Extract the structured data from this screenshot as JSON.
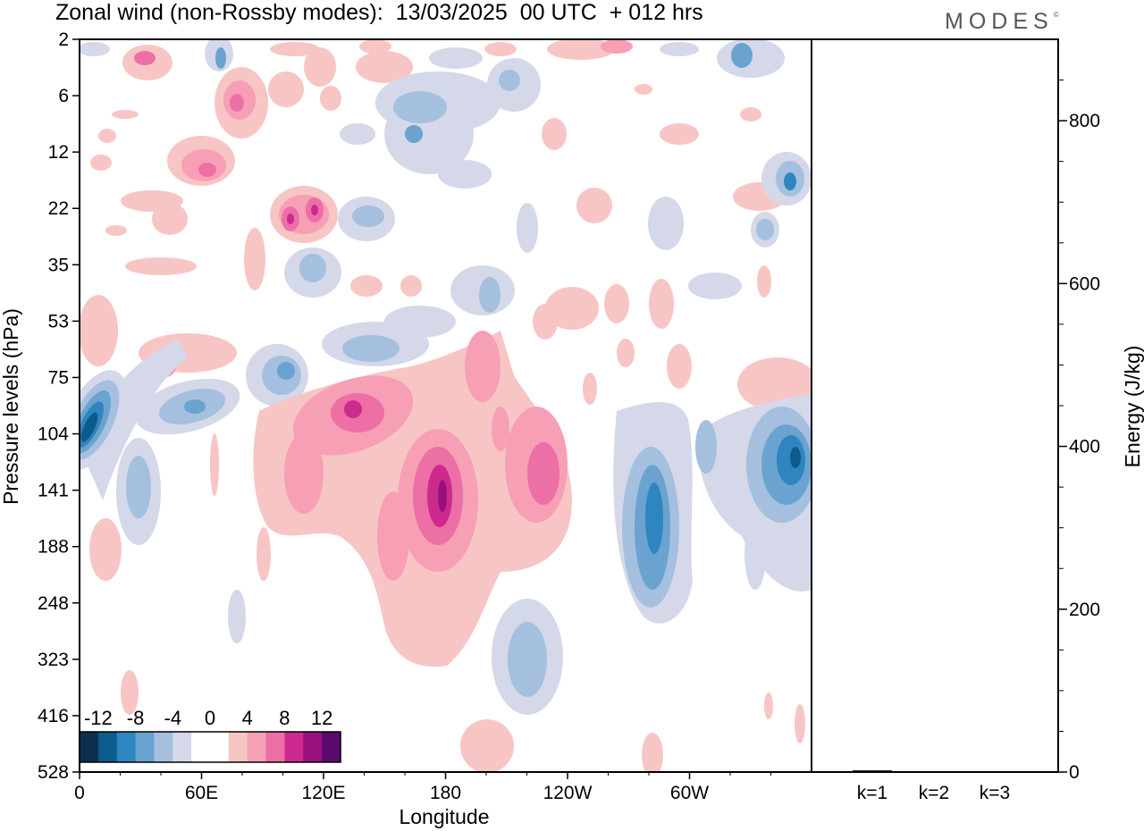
{
  "title": "Zonal wind (non-Rossby modes):  13/03/2025  00 UTC  + 012 hrs",
  "brand": "MODES",
  "brand_mark": "©",
  "chart_data": [
    {
      "type": "heatmap",
      "title": "Zonal wind (non-Rossby modes):  13/03/2025  00 UTC  + 012 hrs",
      "xlabel": "Longitude",
      "ylabel": "Pressure levels (hPa)",
      "x_ticks": [
        "0",
        "60E",
        "120E",
        "180",
        "120W",
        "60W"
      ],
      "y_ticks": [
        "2",
        "6",
        "12",
        "22",
        "35",
        "53",
        "75",
        "104",
        "141",
        "188",
        "248",
        "323",
        "416",
        "528"
      ],
      "colorbar": {
        "labels": [
          "-12",
          "-8",
          "-4",
          "0",
          "4",
          "8",
          "12"
        ],
        "colors": [
          "#0b2f4c",
          "#0d5a8c",
          "#2f85c0",
          "#6aa3cf",
          "#a4c0de",
          "#d4d8e9",
          "#ffffff",
          "#ffffff",
          "#f8c5c5",
          "#f79fb5",
          "#ec6fa6",
          "#cc2a8e",
          "#99107c",
          "#5a0a6e"
        ]
      },
      "features": [
        {
          "lon": 8,
          "p": 104,
          "value": -12
        },
        {
          "lon": 30,
          "p": 141,
          "value": -6
        },
        {
          "lon": 40,
          "p": 104,
          "value": -6
        },
        {
          "lon": 100,
          "p": 75,
          "value": -6
        },
        {
          "lon": 110,
          "p": 22,
          "value": 8
        },
        {
          "lon": 130,
          "p": 104,
          "value": 8
        },
        {
          "lon": 178,
          "p": 141,
          "value": 10
        },
        {
          "lon": 200,
          "p": 75,
          "value": 6
        },
        {
          "lon": 225,
          "p": 104,
          "value": 9
        },
        {
          "lon": 285,
          "p": 141,
          "value": -10
        },
        {
          "lon": 355,
          "p": 104,
          "value": -10
        },
        {
          "lon": 228,
          "p": 323,
          "value": -6
        },
        {
          "lon": 185,
          "p": 6,
          "value": -6
        },
        {
          "lon": 82,
          "p": 6,
          "value": 6
        },
        {
          "lon": 55,
          "p": 12,
          "value": 6
        },
        {
          "lon": 335,
          "p": 12,
          "value": -6
        }
      ]
    },
    {
      "type": "bar",
      "categories": [
        "k=1",
        "k=2",
        "k=3"
      ],
      "values": [
        2,
        1,
        1
      ],
      "ylabel": "Energy (J/kg)",
      "y_ticks": [
        "0",
        "200",
        "400",
        "600",
        "800"
      ],
      "ylim": [
        0,
        900
      ]
    }
  ]
}
